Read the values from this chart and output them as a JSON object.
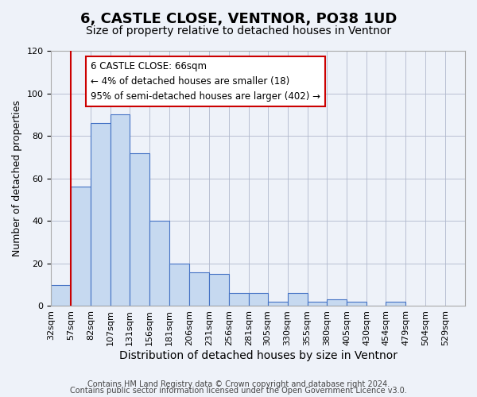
{
  "title": "6, CASTLE CLOSE, VENTNOR, PO38 1UD",
  "subtitle": "Size of property relative to detached houses in Ventnor",
  "xlabel": "Distribution of detached houses by size in Ventnor",
  "ylabel": "Number of detached properties",
  "bar_values": [
    10,
    56,
    86,
    90,
    72,
    40,
    20,
    16,
    15,
    6,
    6,
    2,
    6,
    2,
    3,
    2,
    0,
    2
  ],
  "bin_labels": [
    "32sqm",
    "57sqm",
    "82sqm",
    "107sqm",
    "131sqm",
    "156sqm",
    "181sqm",
    "206sqm",
    "231sqm",
    "256sqm",
    "281sqm",
    "305sqm",
    "330sqm",
    "355sqm",
    "380sqm",
    "405sqm",
    "430sqm",
    "454sqm",
    "479sqm",
    "504sqm",
    "529sqm"
  ],
  "bar_color": "#c6d9f0",
  "bar_edge_color": "#4472c4",
  "vline_color": "#cc0000",
  "annotation_text": "6 CASTLE CLOSE: 66sqm\n← 4% of detached houses are smaller (18)\n95% of semi-detached houses are larger (402) →",
  "annotation_box_color": "#ffffff",
  "annotation_box_edge": "#cc0000",
  "ylim": [
    0,
    120
  ],
  "yticks": [
    0,
    20,
    40,
    60,
    80,
    100,
    120
  ],
  "footer1": "Contains HM Land Registry data © Crown copyright and database right 2024.",
  "footer2": "Contains public sector information licensed under the Open Government Licence v3.0.",
  "bg_color": "#eef2f9",
  "plot_bg_color": "#eef2f9",
  "title_fontsize": 13,
  "subtitle_fontsize": 10,
  "xlabel_fontsize": 10,
  "ylabel_fontsize": 9,
  "tick_fontsize": 8,
  "footer_fontsize": 7,
  "annotation_fontsize": 8.5
}
